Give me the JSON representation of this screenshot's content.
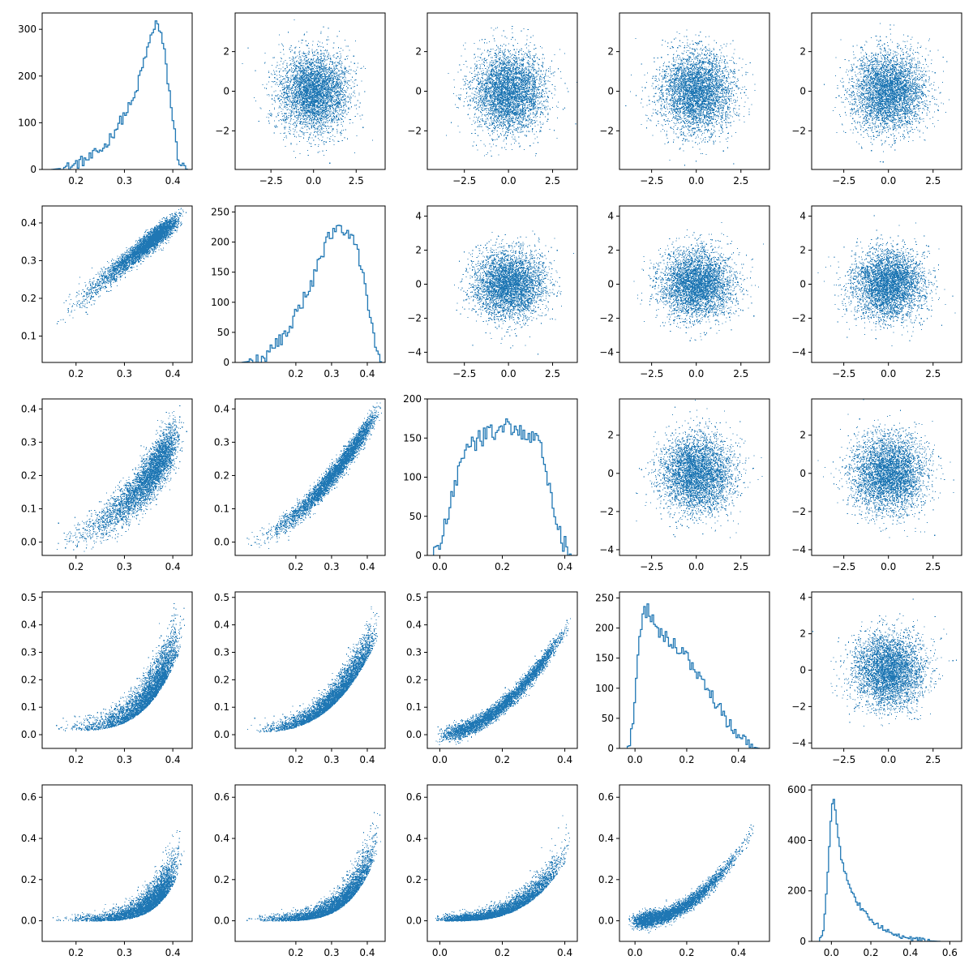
{
  "colors": {
    "series": "#1f77b4",
    "axes": "#000000",
    "background": "#ffffff"
  },
  "chart_data": {
    "type": "pairplot",
    "grid": false,
    "rows": 5,
    "cols": 5,
    "panels": [
      {
        "id": "p-1-1",
        "type": "histogram",
        "xlim": [
          0.13,
          0.44
        ],
        "ylim": [
          0,
          335
        ],
        "xticks": [
          0.2,
          0.3,
          0.4
        ],
        "xtick_labels": [
          "0.2",
          "0.3",
          "0.4"
        ],
        "yticks": [
          0,
          100,
          200,
          300
        ],
        "ytick_labels": [
          "0",
          "100",
          "200",
          "300"
        ],
        "curve": [
          [
            0.15,
            0
          ],
          [
            0.19,
            5
          ],
          [
            0.2,
            12
          ],
          [
            0.23,
            25
          ],
          [
            0.26,
            50
          ],
          [
            0.29,
            100
          ],
          [
            0.32,
            150
          ],
          [
            0.34,
            230
          ],
          [
            0.36,
            300
          ],
          [
            0.365,
            320
          ],
          [
            0.38,
            270
          ],
          [
            0.395,
            150
          ],
          [
            0.41,
            30
          ],
          [
            0.42,
            5
          ],
          [
            0.43,
            0
          ]
        ],
        "noise": 12
      },
      {
        "id": "p-1-2",
        "type": "scatter",
        "xlim": [
          -4.6,
          4.2
        ],
        "ylim": [
          -3.95,
          3.95
        ],
        "xticks": [
          -2.5,
          0,
          2.5
        ],
        "xtick_labels": [
          "−2.5",
          "0.0",
          "2.5"
        ],
        "yticks": [
          -2,
          0,
          2
        ],
        "ytick_labels": [
          "−2",
          "0",
          "2"
        ],
        "relation": "normal"
      },
      {
        "id": "p-1-3",
        "type": "scatter",
        "xlim": [
          -4.6,
          3.9
        ],
        "ylim": [
          -3.95,
          3.95
        ],
        "xticks": [
          -2.5,
          0,
          2.5
        ],
        "xtick_labels": [
          "−2.5",
          "0.0",
          "2.5"
        ],
        "yticks": [
          -2,
          0,
          2
        ],
        "ytick_labels": [
          "−2",
          "0",
          "2"
        ],
        "relation": "normal"
      },
      {
        "id": "p-1-4",
        "type": "scatter",
        "xlim": [
          -4.3,
          4.1
        ],
        "ylim": [
          -3.95,
          3.95
        ],
        "xticks": [
          -2.5,
          0,
          2.5
        ],
        "xtick_labels": [
          "−2.5",
          "0.0",
          "2.5"
        ],
        "yticks": [
          -2,
          0,
          2
        ],
        "ytick_labels": [
          "−2",
          "0",
          "2"
        ],
        "relation": "normal"
      },
      {
        "id": "p-1-5",
        "type": "scatter",
        "xlim": [
          -4.3,
          4.1
        ],
        "ylim": [
          -3.95,
          3.95
        ],
        "xticks": [
          -2.5,
          0,
          2.5
        ],
        "xtick_labels": [
          "−2.5",
          "0.0",
          "2.5"
        ],
        "yticks": [
          -2,
          0,
          2
        ],
        "ytick_labels": [
          "−2",
          "0",
          "2"
        ],
        "relation": "normal"
      },
      {
        "id": "p-2-1",
        "type": "scatter",
        "xlim": [
          0.13,
          0.44
        ],
        "ylim": [
          0.03,
          0.445
        ],
        "xticks": [
          0.2,
          0.3,
          0.4
        ],
        "xtick_labels": [
          "0.2",
          "0.3",
          "0.4"
        ],
        "yticks": [
          0.1,
          0.2,
          0.3,
          0.4
        ],
        "ytick_labels": [
          "0.1",
          "0.2",
          "0.3",
          "0.4"
        ],
        "relation": "diag"
      },
      {
        "id": "p-2-2",
        "type": "histogram",
        "xlim": [
          0.03,
          0.45
        ],
        "ylim": [
          0,
          260
        ],
        "xticks": [
          0.2,
          0.3,
          0.4
        ],
        "xtick_labels": [
          "0.2",
          "0.3",
          "0.4"
        ],
        "yticks": [
          0,
          50,
          100,
          150,
          200,
          250
        ],
        "ytick_labels": [
          "0",
          "50",
          "100",
          "150",
          "200",
          "250"
        ],
        "curve": [
          [
            0.05,
            0
          ],
          [
            0.1,
            5
          ],
          [
            0.15,
            30
          ],
          [
            0.2,
            80
          ],
          [
            0.25,
            140
          ],
          [
            0.28,
            190
          ],
          [
            0.3,
            215
          ],
          [
            0.33,
            225
          ],
          [
            0.36,
            210
          ],
          [
            0.39,
            150
          ],
          [
            0.415,
            50
          ],
          [
            0.43,
            5
          ],
          [
            0.44,
            0
          ]
        ],
        "noise": 12
      },
      {
        "id": "p-2-3",
        "type": "scatter",
        "xlim": [
          -4.6,
          3.9
        ],
        "ylim": [
          -4.6,
          4.6
        ],
        "xticks": [
          -2.5,
          0,
          2.5
        ],
        "xtick_labels": [
          "−2.5",
          "0.0",
          "2.5"
        ],
        "yticks": [
          -4,
          -2,
          0,
          2,
          4
        ],
        "ytick_labels": [
          "−4",
          "−2",
          "0",
          "2",
          "4"
        ],
        "relation": "normal"
      },
      {
        "id": "p-2-4",
        "type": "scatter",
        "xlim": [
          -4.3,
          4.1
        ],
        "ylim": [
          -4.6,
          4.6
        ],
        "xticks": [
          -2.5,
          0,
          2.5
        ],
        "xtick_labels": [
          "−2.5",
          "0.0",
          "2.5"
        ],
        "yticks": [
          -4,
          -2,
          0,
          2,
          4
        ],
        "ytick_labels": [
          "−4",
          "−2",
          "0",
          "2",
          "4"
        ],
        "relation": "normal"
      },
      {
        "id": "p-2-5",
        "type": "scatter",
        "xlim": [
          -4.3,
          4.1
        ],
        "ylim": [
          -4.6,
          4.6
        ],
        "xticks": [
          -2.5,
          0,
          2.5
        ],
        "xtick_labels": [
          "−2.5",
          "0.0",
          "2.5"
        ],
        "yticks": [
          -4,
          -2,
          0,
          2,
          4
        ],
        "ytick_labels": [
          "−4",
          "−2",
          "0",
          "2",
          "4"
        ],
        "relation": "normal"
      },
      {
        "id": "p-3-1",
        "type": "scatter",
        "xlim": [
          0.13,
          0.44
        ],
        "ylim": [
          -0.04,
          0.43
        ],
        "xticks": [
          0.2,
          0.3,
          0.4
        ],
        "xtick_labels": [
          "0.2",
          "0.3",
          "0.4"
        ],
        "yticks": [
          0.0,
          0.1,
          0.2,
          0.3,
          0.4
        ],
        "ytick_labels": [
          "0.0",
          "0.1",
          "0.2",
          "0.3",
          "0.4"
        ],
        "relation": "curve-a"
      },
      {
        "id": "p-3-2",
        "type": "scatter",
        "xlim": [
          0.03,
          0.45
        ],
        "ylim": [
          -0.04,
          0.43
        ],
        "xticks": [
          0.2,
          0.3,
          0.4
        ],
        "xtick_labels": [
          "0.2",
          "0.3",
          "0.4"
        ],
        "yticks": [
          0.0,
          0.1,
          0.2,
          0.3,
          0.4
        ],
        "ytick_labels": [
          "0.0",
          "0.1",
          "0.2",
          "0.3",
          "0.4"
        ],
        "relation": "curve-b"
      },
      {
        "id": "p-3-3",
        "type": "histogram",
        "xlim": [
          -0.04,
          0.44
        ],
        "ylim": [
          0,
          200
        ],
        "xticks": [
          0.0,
          0.2,
          0.4
        ],
        "xtick_labels": [
          "0.0",
          "0.2",
          "0.4"
        ],
        "yticks": [
          0,
          50,
          100,
          150,
          200
        ],
        "ytick_labels": [
          "0",
          "50",
          "100",
          "150",
          "200"
        ],
        "curve": [
          [
            -0.02,
            0
          ],
          [
            0.0,
            15
          ],
          [
            0.03,
            60
          ],
          [
            0.06,
            110
          ],
          [
            0.1,
            140
          ],
          [
            0.15,
            155
          ],
          [
            0.2,
            165
          ],
          [
            0.25,
            160
          ],
          [
            0.3,
            150
          ],
          [
            0.33,
            130
          ],
          [
            0.36,
            70
          ],
          [
            0.39,
            20
          ],
          [
            0.42,
            0
          ]
        ],
        "noise": 12
      },
      {
        "id": "p-3-4",
        "type": "scatter",
        "xlim": [
          -4.3,
          4.1
        ],
        "ylim": [
          -4.3,
          3.9
        ],
        "xticks": [
          -2.5,
          0,
          2.5
        ],
        "xtick_labels": [
          "−2.5",
          "0.0",
          "2.5"
        ],
        "yticks": [
          -4,
          -2,
          0,
          2
        ],
        "ytick_labels": [
          "−4",
          "−2",
          "0",
          "2"
        ],
        "relation": "normal"
      },
      {
        "id": "p-3-5",
        "type": "scatter",
        "xlim": [
          -4.3,
          4.1
        ],
        "ylim": [
          -4.3,
          3.9
        ],
        "xticks": [
          -2.5,
          0,
          2.5
        ],
        "xtick_labels": [
          "−2.5",
          "0.0",
          "2.5"
        ],
        "yticks": [
          -4,
          -2,
          0,
          2
        ],
        "ytick_labels": [
          "−4",
          "−2",
          "0",
          "2"
        ],
        "relation": "normal"
      },
      {
        "id": "p-4-1",
        "type": "scatter",
        "xlim": [
          0.13,
          0.44
        ],
        "ylim": [
          -0.05,
          0.52
        ],
        "xticks": [
          0.2,
          0.3,
          0.4
        ],
        "xtick_labels": [
          "0.2",
          "0.3",
          "0.4"
        ],
        "yticks": [
          0.0,
          0.1,
          0.2,
          0.3,
          0.4,
          0.5
        ],
        "ytick_labels": [
          "0.0",
          "0.1",
          "0.2",
          "0.3",
          "0.4",
          "0.5"
        ],
        "relation": "curve-c"
      },
      {
        "id": "p-4-2",
        "type": "scatter",
        "xlim": [
          0.03,
          0.45
        ],
        "ylim": [
          -0.05,
          0.52
        ],
        "xticks": [
          0.2,
          0.3,
          0.4
        ],
        "xtick_labels": [
          "0.2",
          "0.3",
          "0.4"
        ],
        "yticks": [
          0.0,
          0.1,
          0.2,
          0.3,
          0.4,
          0.5
        ],
        "ytick_labels": [
          "0.0",
          "0.1",
          "0.2",
          "0.3",
          "0.4",
          "0.5"
        ],
        "relation": "curve-d"
      },
      {
        "id": "p-4-3",
        "type": "scatter",
        "xlim": [
          -0.04,
          0.44
        ],
        "ylim": [
          -0.05,
          0.52
        ],
        "xticks": [
          0.0,
          0.2,
          0.4
        ],
        "xtick_labels": [
          "0.0",
          "0.2",
          "0.4"
        ],
        "yticks": [
          0.0,
          0.1,
          0.2,
          0.3,
          0.4,
          0.5
        ],
        "ytick_labels": [
          "0.0",
          "0.1",
          "0.2",
          "0.3",
          "0.4",
          "0.5"
        ],
        "relation": "curve-e"
      },
      {
        "id": "p-4-4",
        "type": "histogram",
        "xlim": [
          -0.06,
          0.52
        ],
        "ylim": [
          0,
          260
        ],
        "xticks": [
          0.0,
          0.2,
          0.4
        ],
        "xtick_labels": [
          "0.0",
          "0.2",
          "0.4"
        ],
        "yticks": [
          0,
          50,
          100,
          150,
          200,
          250
        ],
        "ytick_labels": [
          "0",
          "50",
          "100",
          "150",
          "200",
          "250"
        ],
        "curve": [
          [
            -0.03,
            0
          ],
          [
            -0.01,
            30
          ],
          [
            0.01,
            150
          ],
          [
            0.03,
            225
          ],
          [
            0.05,
            230
          ],
          [
            0.08,
            200
          ],
          [
            0.12,
            185
          ],
          [
            0.16,
            170
          ],
          [
            0.2,
            150
          ],
          [
            0.25,
            120
          ],
          [
            0.3,
            85
          ],
          [
            0.35,
            50
          ],
          [
            0.4,
            20
          ],
          [
            0.45,
            3
          ],
          [
            0.48,
            0
          ]
        ],
        "noise": 11
      },
      {
        "id": "p-4-5",
        "type": "scatter",
        "xlim": [
          -4.3,
          4.1
        ],
        "ylim": [
          -4.3,
          4.3
        ],
        "xticks": [
          -2.5,
          0,
          2.5
        ],
        "xtick_labels": [
          "−2.5",
          "0.0",
          "2.5"
        ],
        "yticks": [
          -4,
          -2,
          0,
          2,
          4
        ],
        "ytick_labels": [
          "−4",
          "−2",
          "0",
          "2",
          "4"
        ],
        "relation": "normal"
      },
      {
        "id": "p-5-1",
        "type": "scatter",
        "xlim": [
          0.13,
          0.44
        ],
        "ylim": [
          -0.1,
          0.66
        ],
        "xticks": [
          0.2,
          0.3,
          0.4
        ],
        "xtick_labels": [
          "0.2",
          "0.3",
          "0.4"
        ],
        "yticks": [
          0.0,
          0.2,
          0.4,
          0.6
        ],
        "ytick_labels": [
          "0.0",
          "0.2",
          "0.4",
          "0.6"
        ],
        "relation": "curve-f"
      },
      {
        "id": "p-5-2",
        "type": "scatter",
        "xlim": [
          0.03,
          0.45
        ],
        "ylim": [
          -0.1,
          0.66
        ],
        "xticks": [
          0.2,
          0.3,
          0.4
        ],
        "xtick_labels": [
          "0.2",
          "0.3",
          "0.4"
        ],
        "yticks": [
          0.0,
          0.2,
          0.4,
          0.6
        ],
        "ytick_labels": [
          "0.0",
          "0.2",
          "0.4",
          "0.6"
        ],
        "relation": "curve-g"
      },
      {
        "id": "p-5-3",
        "type": "scatter",
        "xlim": [
          -0.04,
          0.44
        ],
        "ylim": [
          -0.1,
          0.66
        ],
        "xticks": [
          0.0,
          0.2,
          0.4
        ],
        "xtick_labels": [
          "0.0",
          "0.2",
          "0.4"
        ],
        "yticks": [
          0.0,
          0.2,
          0.4,
          0.6
        ],
        "ytick_labels": [
          "0.0",
          "0.2",
          "0.4",
          "0.6"
        ],
        "relation": "curve-h"
      },
      {
        "id": "p-5-4",
        "type": "scatter",
        "xlim": [
          -0.06,
          0.52
        ],
        "ylim": [
          -0.1,
          0.66
        ],
        "xticks": [
          0.0,
          0.2,
          0.4
        ],
        "xtick_labels": [
          "0.0",
          "0.2",
          "0.4"
        ],
        "yticks": [
          0.0,
          0.2,
          0.4,
          0.6
        ],
        "ytick_labels": [
          "0.0",
          "0.2",
          "0.4",
          "0.6"
        ],
        "relation": "curve-i"
      },
      {
        "id": "p-5-5",
        "type": "histogram",
        "xlim": [
          -0.1,
          0.66
        ],
        "ylim": [
          0,
          620
        ],
        "xticks": [
          0.0,
          0.2,
          0.4,
          0.6
        ],
        "xtick_labels": [
          "0.0",
          "0.2",
          "0.4",
          "0.6"
        ],
        "yticks": [
          0,
          200,
          400,
          600
        ],
        "ytick_labels": [
          "0",
          "200",
          "400",
          "600"
        ],
        "curve": [
          [
            -0.06,
            0
          ],
          [
            -0.04,
            50
          ],
          [
            -0.02,
            250
          ],
          [
            0.0,
            520
          ],
          [
            0.01,
            585
          ],
          [
            0.03,
            450
          ],
          [
            0.05,
            330
          ],
          [
            0.08,
            240
          ],
          [
            0.12,
            170
          ],
          [
            0.16,
            120
          ],
          [
            0.2,
            85
          ],
          [
            0.25,
            55
          ],
          [
            0.3,
            35
          ],
          [
            0.35,
            20
          ],
          [
            0.4,
            12
          ],
          [
            0.45,
            5
          ],
          [
            0.5,
            2
          ],
          [
            0.55,
            0
          ]
        ],
        "noise": 10
      }
    ]
  }
}
